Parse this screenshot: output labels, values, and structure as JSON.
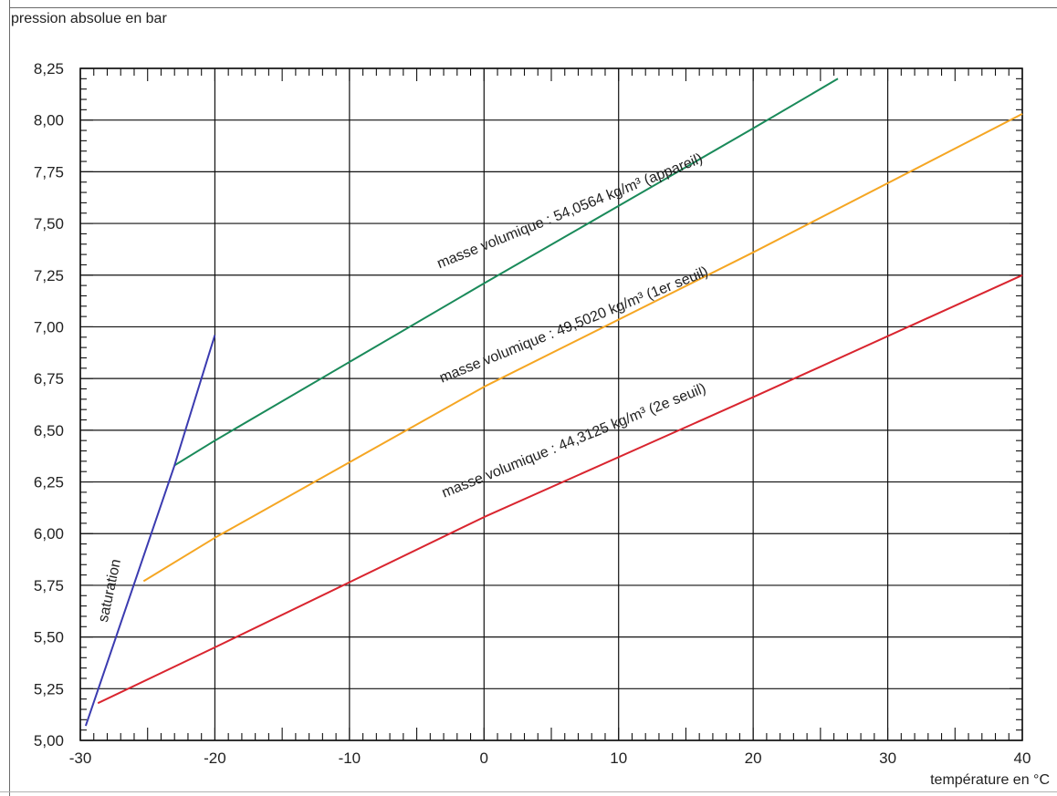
{
  "chart_data": {
    "type": "line",
    "ylabel": "pression absolue en bar",
    "xlabel": "température en °C",
    "xlim": [
      -30,
      40
    ],
    "ylim": [
      5.0,
      8.25
    ],
    "x_ticks": [
      -30,
      -20,
      -10,
      0,
      10,
      20,
      30,
      40
    ],
    "x_tick_labels": [
      "-30",
      "-20",
      "-10",
      "0",
      "10",
      "20",
      "30",
      "40"
    ],
    "y_ticks": [
      5.0,
      5.25,
      5.5,
      5.75,
      6.0,
      6.25,
      6.5,
      6.75,
      7.0,
      7.25,
      7.5,
      7.75,
      8.0,
      8.25
    ],
    "y_tick_labels": [
      "5,00",
      "5,25",
      "5,50",
      "5,75",
      "6,00",
      "6,25",
      "6,50",
      "6,75",
      "7,00",
      "7,25",
      "7,50",
      "7,75",
      "8,00",
      "8,25"
    ],
    "grid": true,
    "series": [
      {
        "name": "masse volumique : 54,0564 kg/m³ (appareil)",
        "color": "#1a8a5a",
        "points": [
          [
            -23,
            6.33
          ],
          [
            -20,
            6.45
          ],
          [
            0,
            7.21
          ],
          [
            20,
            7.96
          ],
          [
            26.3,
            8.2
          ]
        ]
      },
      {
        "name": "masse volumique : 49,5020 kg/m³ (1er seuil)",
        "color": "#f5a623",
        "points": [
          [
            -25.3,
            5.77
          ],
          [
            -20,
            5.98
          ],
          [
            0,
            6.71
          ],
          [
            20,
            7.36
          ],
          [
            40,
            8.03
          ]
        ]
      },
      {
        "name": "masse volumique : 44,3125 kg/m³ (2e seuil)",
        "color": "#d9252f",
        "points": [
          [
            -28.7,
            5.18
          ],
          [
            -20,
            5.45
          ],
          [
            0,
            6.08
          ],
          [
            20,
            6.66
          ],
          [
            40,
            7.25
          ]
        ]
      },
      {
        "name": "saturation",
        "color": "#3b3bb0",
        "points": [
          [
            -29.6,
            5.07
          ],
          [
            -23,
            6.33
          ],
          [
            -20,
            6.96
          ]
        ]
      }
    ],
    "annotations": [
      {
        "text": "masse volumique : 54,0564 kg/m³ (appareil)",
        "x": 6.5,
        "y": 7.54,
        "angle": -22
      },
      {
        "text": "masse volumique : 49,5020 kg/m³ (1er seuil)",
        "x": 6.8,
        "y": 6.99,
        "angle": -22
      },
      {
        "text": "masse volumique : 44,3125 kg/m³ (2e seuil)",
        "x": 6.8,
        "y": 6.43,
        "angle": -22
      },
      {
        "text": "saturation",
        "x": -27.5,
        "y": 5.72,
        "angle": -78
      }
    ]
  }
}
